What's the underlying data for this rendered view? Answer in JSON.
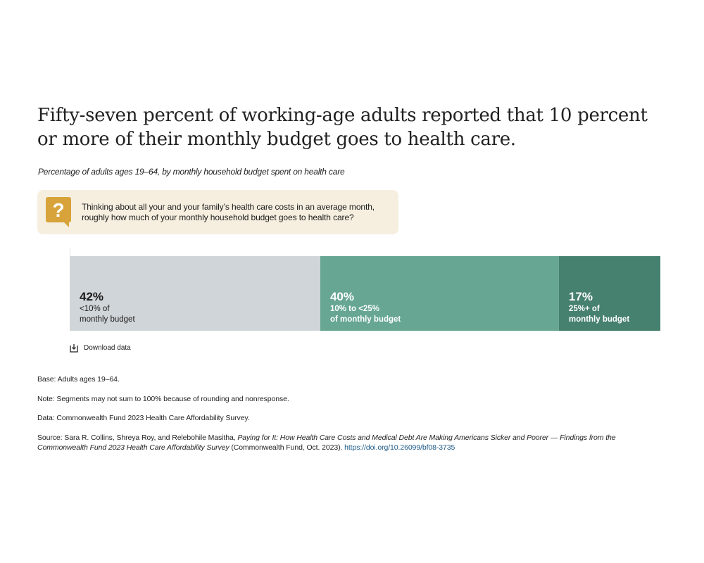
{
  "title": "Fifty-seven percent of working-age adults reported that 10 percent or more of their monthly budget goes to health care.",
  "subtitle": "Percentage of adults ages 19–64, by monthly household budget spent on health care",
  "question": {
    "text": "Thinking about all your and your family’s health care costs in an average month, roughly how much of your monthly household budget goes to health care?",
    "icon": "question-mark-speech-bubble-icon"
  },
  "chart_data": {
    "type": "bar",
    "orientation": "horizontal-stacked",
    "title": "Fifty-seven percent of working-age adults reported that 10 percent or more of their monthly budget goes to health care.",
    "subtitle": "Percentage of adults ages 19–64, by monthly household budget spent on health care",
    "series": [
      {
        "name": "<10% of monthly budget",
        "label_line1": "<10% of",
        "label_line2": "monthly budget",
        "value": 42,
        "value_label": "42%",
        "color": "#d0d5d9",
        "text_color": "#1a1a1a"
      },
      {
        "name": "10% to <25% of monthly budget",
        "label_line1": "10% to <25%",
        "label_line2": "of monthly budget",
        "value": 40,
        "value_label": "40%",
        "color": "#66a692",
        "text_color": "#ffffff"
      },
      {
        "name": "25%+ of monthly budget",
        "label_line1": "25%+ of",
        "label_line2": "monthly budget",
        "value": 17,
        "value_label": "17%",
        "color": "#46806e",
        "text_color": "#ffffff"
      }
    ],
    "xlim": [
      0,
      99
    ],
    "grid": false,
    "legend": "none"
  },
  "download_label": "Download data",
  "notes": {
    "base": "Base: Adults ages 19–64.",
    "note": "Note: Segments may not sum to 100% because of rounding and nonresponse.",
    "data": "Data: Commonwealth Fund 2023 Health Care Affordability Survey.",
    "source_prefix": "Source: Sara R. Collins, Shreya Roy, and Relebohile Masitha, ",
    "source_title": "Paying for It: How Health Care Costs and Medical Debt Are Making Americans Sicker and Poorer — Findings from the Commonwealth Fund 2023 Health Care Affordability Survey",
    "source_suffix": " (Commonwealth Fund, Oct. 2023). ",
    "source_link": "https://doi.org/10.26099/bf08-3735"
  },
  "colors": {
    "question_bg": "#f6efe0",
    "icon": "#d8a33a",
    "link": "#1e5b8a"
  }
}
